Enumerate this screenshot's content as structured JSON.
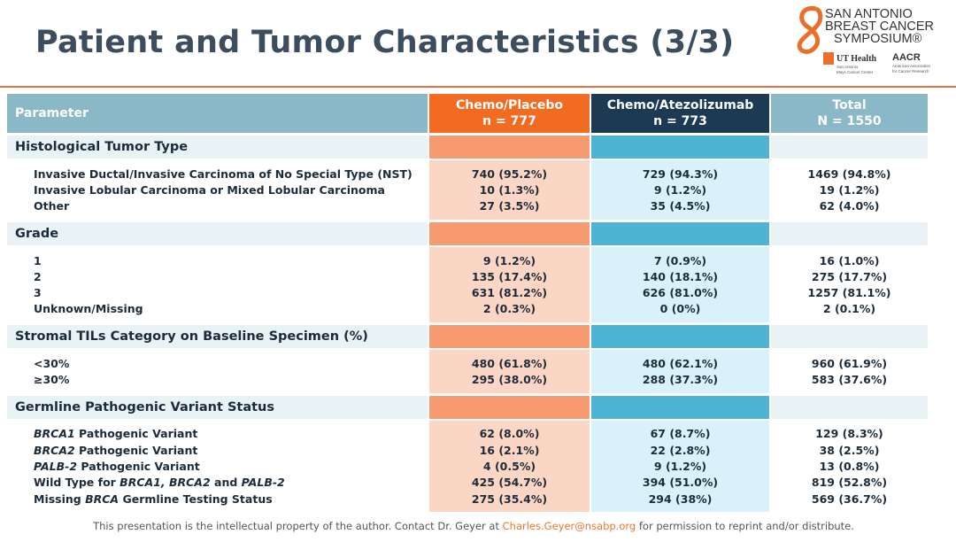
{
  "header": {
    "title": "Patient and Tumor Characteristics (3/3)",
    "logo": {
      "line1": "SAN ANTONIO",
      "line2": "BREAST CANCER",
      "line3": "SYMPOSIUM®",
      "ut_health": "UT Health",
      "ut_sub1": "San Antonio",
      "ut_sub2": "Mays Cancer Center",
      "aacr": "AACR",
      "aacr_sub1": "American Association",
      "aacr_sub2": "for Cancer Research"
    }
  },
  "table": {
    "columns": [
      {
        "name": "Parameter"
      },
      {
        "name": "Chemo/Placebo",
        "n": "n = 777"
      },
      {
        "name": "Chemo/Atezolizumab",
        "n": "n = 773"
      },
      {
        "name": "Total",
        "n": "N = 1550"
      }
    ],
    "sections": [
      {
        "title": "Histological Tumor Type",
        "rows": [
          {
            "label": "Invasive Ductal/Invasive Carcinoma of No Special Type (NST)",
            "values": [
              "740 (95.2%)",
              "729 (94.3%)",
              "1469 (94.8%)"
            ]
          },
          {
            "label": "Invasive Lobular Carcinoma or Mixed Lobular Carcinoma",
            "values": [
              "10 (1.3%)",
              "9 (1.2%)",
              "19 (1.2%)"
            ]
          },
          {
            "label": "Other",
            "values": [
              "27 (3.5%)",
              "35 (4.5%)",
              "62 (4.0%)"
            ]
          }
        ]
      },
      {
        "title": "Grade",
        "rows": [
          {
            "label": "1",
            "values": [
              "9 (1.2%)",
              "7 (0.9%)",
              "16 (1.0%)"
            ]
          },
          {
            "label": "2",
            "values": [
              "135 (17.4%)",
              "140 (18.1%)",
              "275 (17.7%)"
            ]
          },
          {
            "label": "3",
            "values": [
              "631 (81.2%)",
              "626 (81.0%)",
              "1257 (81.1%)"
            ]
          },
          {
            "label": "Unknown/Missing",
            "values": [
              "2 (0.3%)",
              "0 (0%)",
              "2 (0.1%)"
            ]
          }
        ]
      },
      {
        "title": "Stromal TILs Category on Baseline Specimen (%)",
        "rows": [
          {
            "label": "<30%",
            "values": [
              "480 (61.8%)",
              "480 (62.1%)",
              "960 (61.9%)"
            ]
          },
          {
            "label": "≥30%",
            "values": [
              "295 (38.0%)",
              "288 (37.3%)",
              "583 (37.6%)"
            ]
          }
        ]
      },
      {
        "title": "Germline Pathogenic Variant Status",
        "rows": [
          {
            "label": [
              {
                "text": "BRCA1",
                "italic": true
              },
              {
                "text": " Pathogenic Variant"
              }
            ],
            "values": [
              "62 (8.0%)",
              "67 (8.7%)",
              "129 (8.3%)"
            ]
          },
          {
            "label": [
              {
                "text": "BRCA2",
                "italic": true
              },
              {
                "text": " Pathogenic Variant"
              }
            ],
            "values": [
              "16 (2.1%)",
              "22 (2.8%)",
              "38 (2.5%)"
            ]
          },
          {
            "label": [
              {
                "text": "PALB-2",
                "italic": true
              },
              {
                "text": " Pathogenic Variant"
              }
            ],
            "values": [
              "4 (0.5%)",
              "9 (1.2%)",
              "13 (0.8%)"
            ]
          },
          {
            "label": [
              {
                "text": "Wild Type for "
              },
              {
                "text": "BRCA1, BRCA2",
                "italic": true
              },
              {
                "text": " and "
              },
              {
                "text": "PALB-2",
                "italic": true
              }
            ],
            "values": [
              "425 (54.7%)",
              "394 (51.0%)",
              "819 (52.8%)"
            ]
          },
          {
            "label": [
              {
                "text": "Missing "
              },
              {
                "text": "BRCA",
                "italic": true
              },
              {
                "text": " Germline Testing Status"
              }
            ],
            "values": [
              "275 (35.4%)",
              "294 (38%)",
              "569 (36.7%)"
            ]
          }
        ]
      }
    ]
  },
  "footer": {
    "before": "This presentation is the intellectual property of the author.  Contact Dr. Geyer at ",
    "email": "Charles.Geyer@nsabp.org",
    "after": " for permission to reprint and/or distribute."
  }
}
